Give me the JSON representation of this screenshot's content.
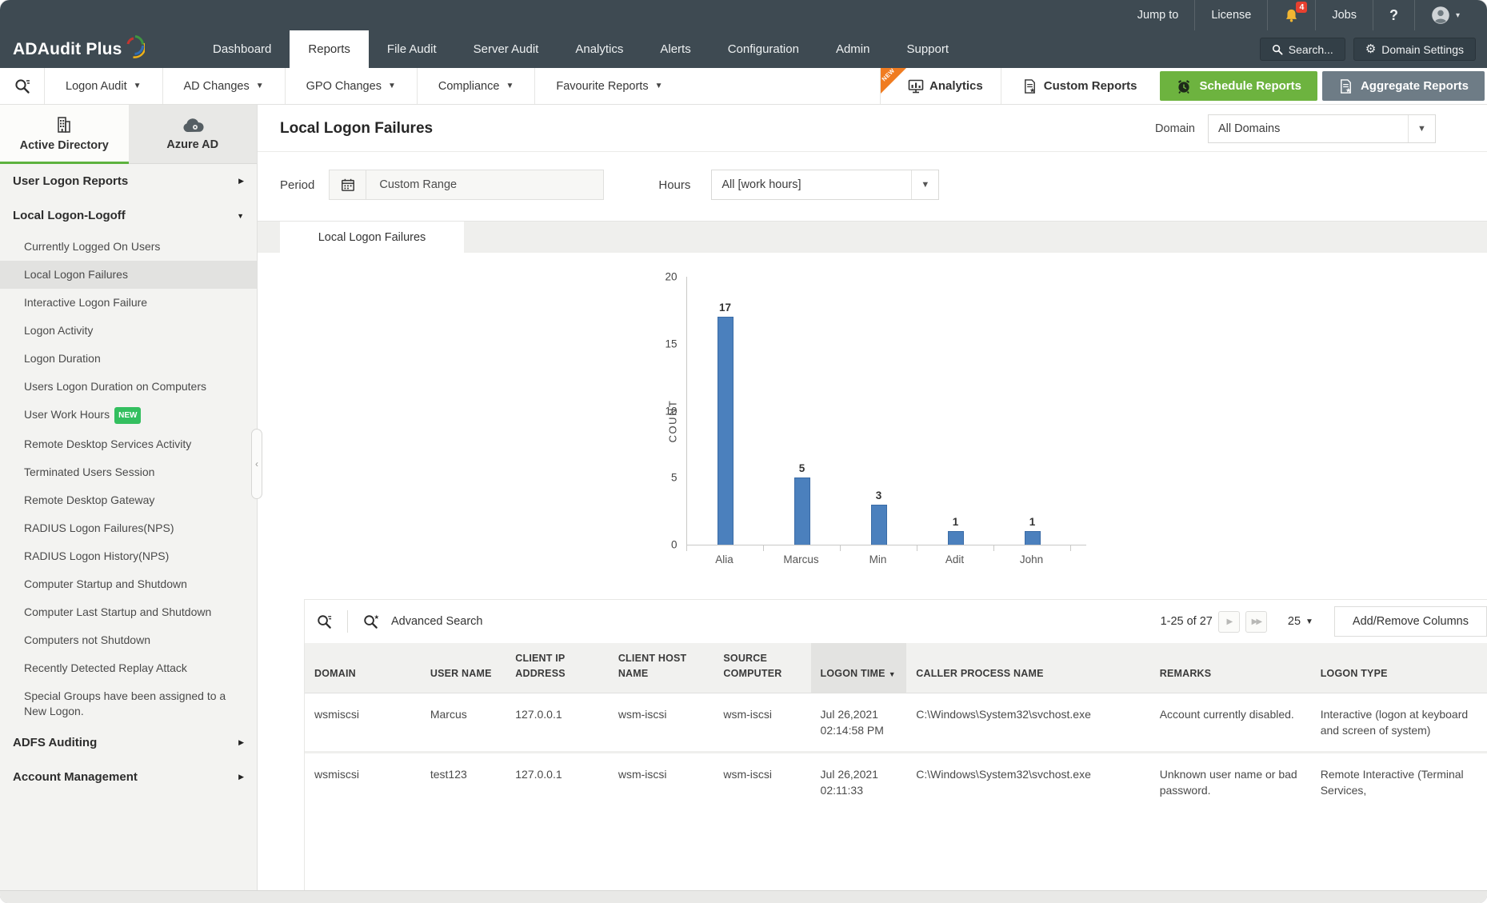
{
  "utility": {
    "jump_to": "Jump to",
    "license": "License",
    "bell_badge": "4",
    "jobs": "Jobs",
    "help": "?"
  },
  "nav": {
    "brand": "ADAudit Plus",
    "items": [
      "Dashboard",
      "Reports",
      "File Audit",
      "Server Audit",
      "Analytics",
      "Alerts",
      "Configuration",
      "Admin",
      "Support"
    ],
    "active": "Reports",
    "search": "Search...",
    "domain_settings": "Domain Settings"
  },
  "toolbar": {
    "menus": [
      "Logon Audit",
      "AD Changes",
      "GPO Changes",
      "Compliance",
      "Favourite Reports"
    ],
    "analytics": "Analytics",
    "analytics_badge": "NEW",
    "custom_reports": "Custom Reports",
    "schedule_reports": "Schedule Reports",
    "aggregate_reports": "Aggregate Reports",
    "accent_green": "#6db33f",
    "accent_gray": "#6e7c86",
    "ribbon_orange": "#f07c21"
  },
  "sidebar": {
    "tabs": [
      "Active Directory",
      "Azure AD"
    ],
    "groups": [
      {
        "label": "User Logon Reports"
      },
      {
        "label": "Local Logon-Logoff",
        "items": [
          "Currently Logged On Users",
          "Local Logon Failures",
          "Interactive Logon Failure",
          "Logon Activity",
          "Logon Duration",
          "Users Logon Duration on Computers",
          "User Work Hours",
          "Remote Desktop Services Activity",
          "Terminated Users Session",
          "Remote Desktop Gateway",
          "RADIUS Logon Failures(NPS)",
          "RADIUS Logon History(NPS)",
          "Computer Startup and Shutdown",
          "Computer Last Startup and Shutdown",
          "Computers not Shutdown",
          "Recently Detected Replay Attack",
          "Special Groups have been assigned to a New Logon."
        ],
        "new_badge": "NEW",
        "selected_item": "Local Logon Failures"
      },
      {
        "label": "ADFS Auditing"
      },
      {
        "label": "Account Management"
      }
    ]
  },
  "report": {
    "title": "Local Logon Failures",
    "domain_label": "Domain",
    "domain_value": "All Domains",
    "period_label": "Period",
    "period_value": "Custom Range",
    "hours_label": "Hours",
    "hours_value": "All [work hours]",
    "tab": "Local Logon Failures"
  },
  "chart_data": {
    "type": "bar",
    "categories": [
      "Alia",
      "Marcus",
      "Min",
      "Adit",
      "John"
    ],
    "values": [
      17,
      5,
      3,
      1,
      1
    ],
    "title": "",
    "xlabel": "",
    "ylabel": "COUNT",
    "ylim": [
      0,
      20
    ],
    "yticks": [
      0,
      5,
      10,
      15,
      20
    ],
    "grid": false,
    "legend": "none",
    "bar_color": "#4b80bd"
  },
  "table": {
    "advanced_search": "Advanced Search",
    "pagination": "1-25 of 27",
    "page_size": "25",
    "add_remove_columns": "Add/Remove Columns",
    "sorted_column": "LOGON TIME",
    "columns": [
      "DOMAIN",
      "USER NAME",
      "CLIENT IP ADDRESS",
      "CLIENT HOST NAME",
      "SOURCE COMPUTER",
      "LOGON TIME",
      "CALLER PROCESS NAME",
      "REMARKS",
      "LOGON TYPE"
    ],
    "rows": [
      [
        "wsmiscsi",
        "Marcus",
        "127.0.0.1",
        "wsm-iscsi",
        "wsm-iscsi",
        "Jul 26,2021 02:14:58 PM",
        "C:\\Windows\\System32\\svchost.exe",
        "Account currently disabled.",
        "Interactive (logon at keyboard and screen of system)"
      ],
      [
        "wsmiscsi",
        "test123",
        "127.0.0.1",
        "wsm-iscsi",
        "wsm-iscsi",
        "Jul 26,2021 02:11:33",
        "C:\\Windows\\System32\\svchost.exe",
        "Unknown user name or bad password.",
        "Remote Interactive (Terminal Services,"
      ]
    ]
  }
}
